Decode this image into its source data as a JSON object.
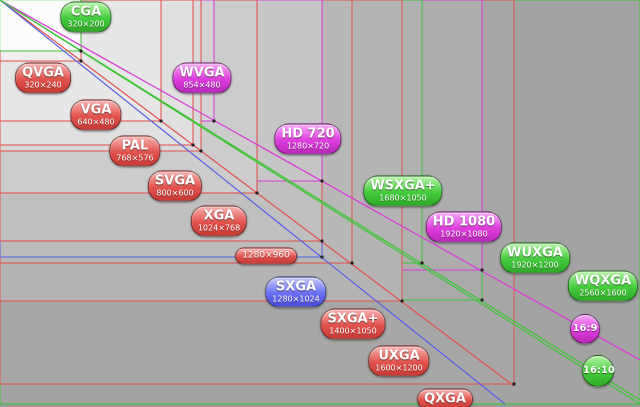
{
  "labels": [
    {
      "id": "cga",
      "name": "CGA",
      "res": "320×200",
      "color": "green"
    },
    {
      "id": "qvga",
      "name": "QVGA",
      "res": "320×240",
      "color": "red"
    },
    {
      "id": "wvga",
      "name": "WVGA",
      "res": "854×480",
      "color": "purple"
    },
    {
      "id": "vga",
      "name": "VGA",
      "res": "640×480",
      "color": "red"
    },
    {
      "id": "pal",
      "name": "PAL",
      "res": "768×576",
      "color": "red"
    },
    {
      "id": "hd720",
      "name": "HD 720",
      "res": "1280×720",
      "color": "purple"
    },
    {
      "id": "svga",
      "name": "SVGA",
      "res": "800×600",
      "color": "red"
    },
    {
      "id": "wsxgap",
      "name": "WSXGA+",
      "res": "1680×1050",
      "color": "green"
    },
    {
      "id": "xga",
      "name": "XGA",
      "res": "1024×768",
      "color": "red"
    },
    {
      "id": "hd1080",
      "name": "HD 1080",
      "res": "1920×1080",
      "color": "purple"
    },
    {
      "id": "r1280",
      "name": "",
      "res": "1280×960",
      "color": "red"
    },
    {
      "id": "wuxga",
      "name": "WUXGA",
      "res": "1920×1200",
      "color": "green"
    },
    {
      "id": "sxga",
      "name": "SXGA",
      "res": "1280×1024",
      "color": "blue"
    },
    {
      "id": "wqxga",
      "name": "WQXGA",
      "res": "2560×1600",
      "color": "green"
    },
    {
      "id": "sxgap",
      "name": "SXGA+",
      "res": "1400×1050",
      "color": "red"
    },
    {
      "id": "uxga",
      "name": "UXGA",
      "res": "1600×1200",
      "color": "red"
    },
    {
      "id": "qxga",
      "name": "QXGA",
      "res": "",
      "color": "red"
    }
  ],
  "ratios": [
    {
      "id": "r169",
      "name": "16:9",
      "color": "purple"
    },
    {
      "id": "r1610",
      "name": "16:10",
      "color": "green"
    }
  ],
  "colors": {
    "red": "#e0504a",
    "green": "#3fc437",
    "purple": "#d93ad9",
    "blue": "#5a5ee6",
    "background": "#9a9a9a"
  }
}
